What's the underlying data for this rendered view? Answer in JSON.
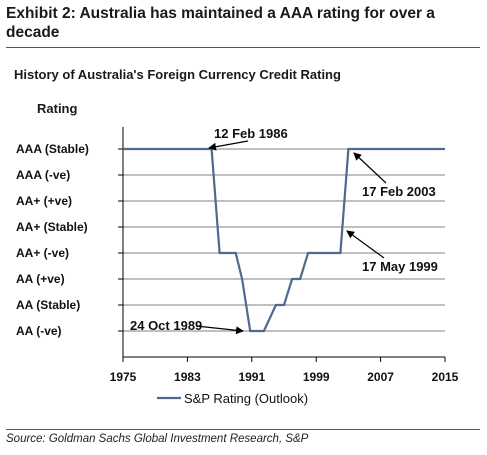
{
  "header": {
    "exhibit_title": "Exhibit 2: Australia has maintained a AAA rating for over a decade"
  },
  "footer": {
    "source": "Source: Goldman Sachs Global Investment Research, S&P"
  },
  "colors": {
    "series": "#4f6a8f",
    "grid": "#808080",
    "axis": "#000000"
  },
  "chart_data": {
    "type": "line",
    "title": "History of Australia's Foreign Currency Credit Rating",
    "ylabel": "Rating",
    "xlabel": "",
    "xlim": [
      1975,
      2015
    ],
    "x_ticks": [
      "1975",
      "1983",
      "1991",
      "1999",
      "2007",
      "2015"
    ],
    "y_categories": [
      "AA (-ve)",
      "AA (Stable)",
      "AA (+ve)",
      "AA+ (-ve)",
      "AA+ (Stable)",
      "AA+ (+ve)",
      "AAA (-ve)",
      "AAA (Stable)"
    ],
    "grid": true,
    "legend_position": "bottom",
    "series": [
      {
        "name": "S&P Rating (Outlook)",
        "x": [
          1975,
          1986,
          1987,
          1989,
          1989.8,
          1990.8,
          1991,
          1992.5,
          1994,
          1995,
          1996,
          1997,
          1998,
          2000,
          2002,
          2003,
          2015
        ],
        "y": [
          7,
          7,
          3,
          3,
          2,
          0,
          0,
          0,
          1,
          1,
          2,
          2,
          3,
          3,
          3,
          7,
          7
        ]
      }
    ],
    "annotations": [
      {
        "text": "12 Feb 1986",
        "x": 1986,
        "y": 7
      },
      {
        "text": "17 Feb 2003",
        "x": 2003,
        "y": 7
      },
      {
        "text": "17 May 1999",
        "x": 2000,
        "y": 3
      },
      {
        "text": "24 Oct 1989",
        "x": 1990,
        "y": 0
      }
    ]
  }
}
